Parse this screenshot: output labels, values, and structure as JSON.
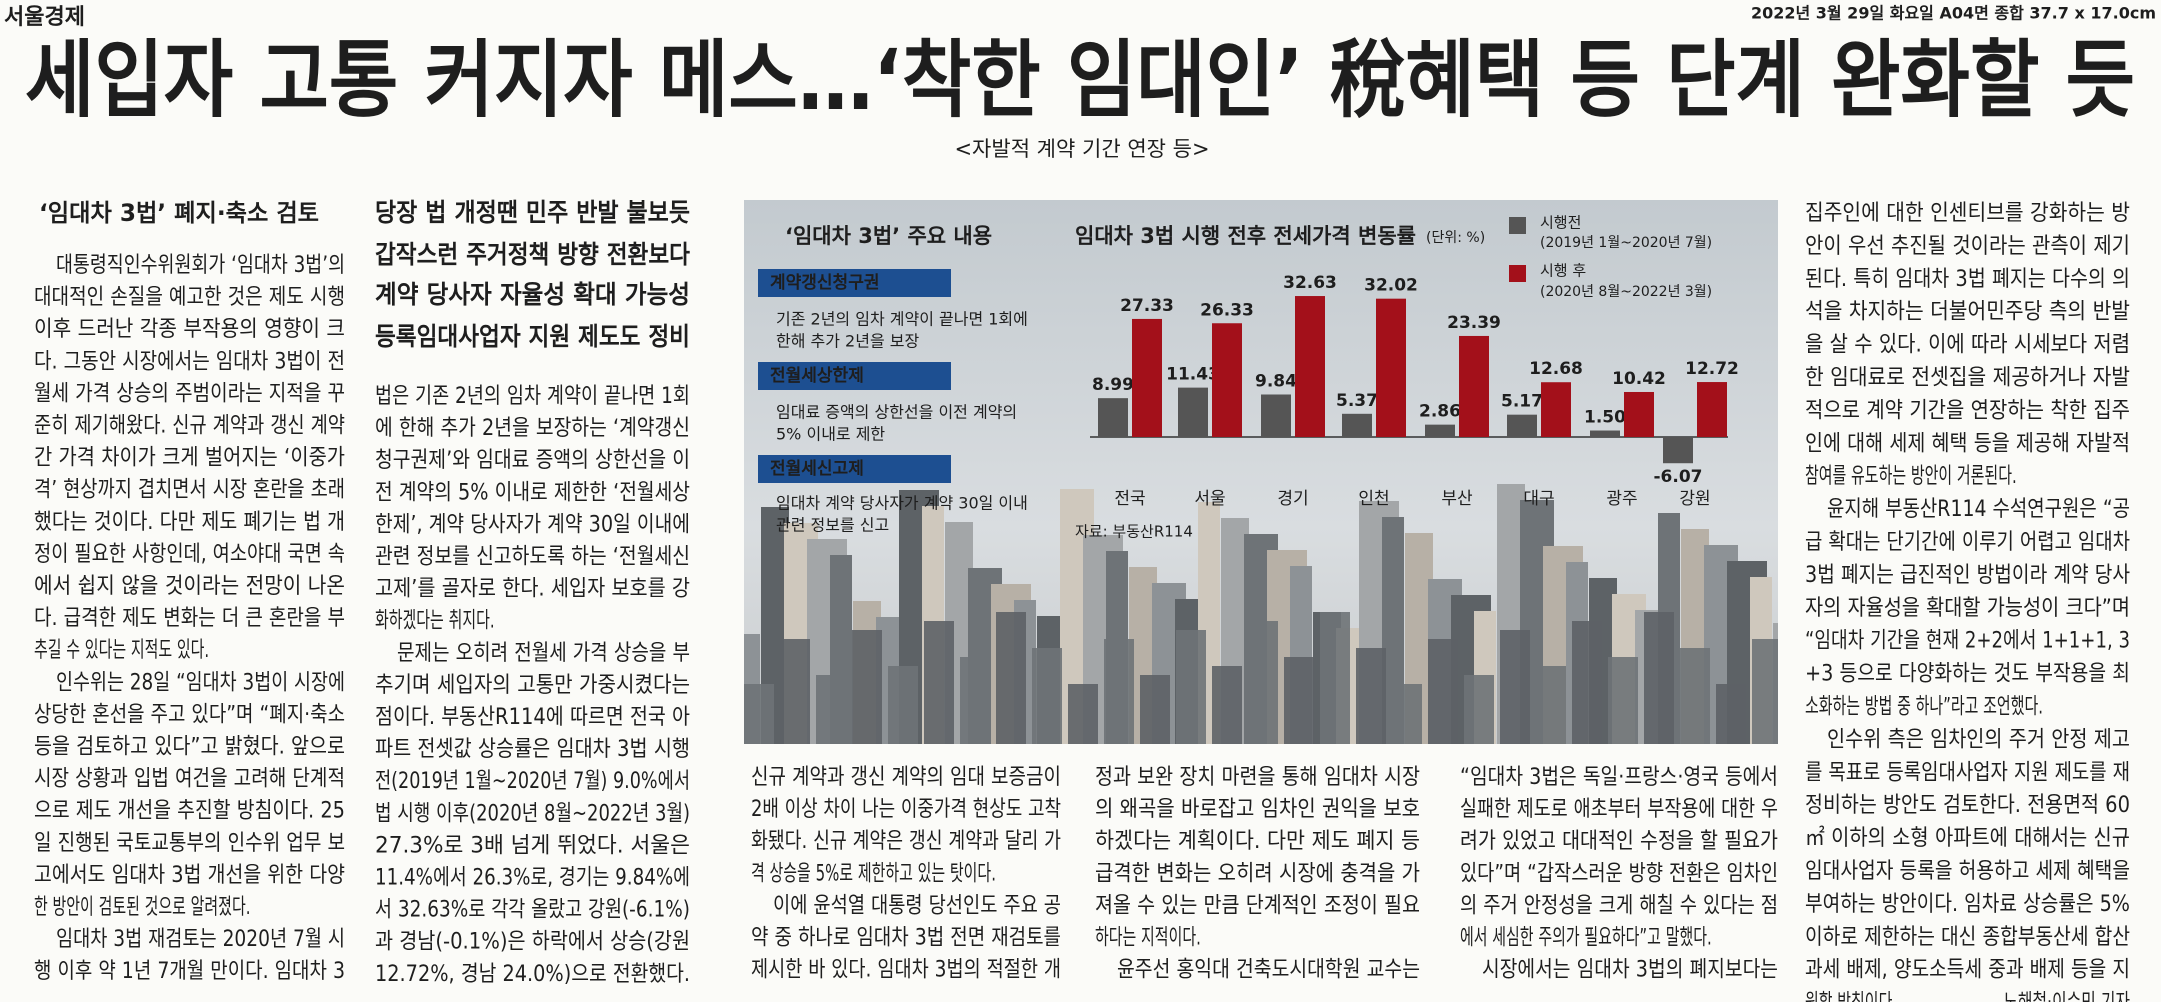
{
  "masthead": "서울경제",
  "dateline": "2022년 3월 29일 화요일 A04면 종합 37.7 x 17.0cm",
  "headline": "세입자 고통 커지자 메스…‘착한 임대인’ 稅혜택 등 단계 완화할 듯",
  "subheadline": "<자발적 계약 기간 연장 등>",
  "subhead": "‘임대차 3법’ 폐지·축소 검토",
  "deck": [
    "당장 법 개정땐 민주 반발 불보듯",
    "갑작스런 주거정책 방향 전환보다",
    "계약 당사자 자율성 확대 가능성",
    "등록임대사업자 지원 제도도 정비"
  ],
  "columns": [
    {
      "paragraphs": [
        {
          "lines": [
            "대통령직인수위원회가 ‘임대차 3법’의",
            "대대적인 손질을 예고한 것은 제도 시행",
            "이후 드러난 각종 부작용의 영향이 크",
            "다. 그동안 시장에서는 임대차 3법이 전",
            "월세 가격 상승의 주범이라는 지적을 꾸",
            "준히 제기해왔다. 신규 계약과 갱신 계약",
            "간 가격 차이가 크게 벌어지는 ‘이중가",
            "격’ 현상까지 겹치면서 시장 혼란을 초래",
            "했다는 것이다. 다만 제도 폐기는 법 개",
            "정이 필요한 사항인데, 여소야대 국면 속",
            "에서 쉽지 않을 것이라는 전망이 나온",
            "다. 급격한 제도 변화는 더 큰 혼란을 부",
            "추길 수 있다는 지적도 있다."
          ]
        },
        {
          "lines": [
            "인수위는 28일 “임대차 3법이 시장에",
            "상당한 혼선을 주고 있다”며 “폐지·축소",
            "등을 검토하고 있다”고 밝혔다. 앞으로",
            "시장 상황과 입법 여건을 고려해 단계적",
            "으로 제도 개선을 추진할 방침이다. 25",
            "일 진행된 국토교통부의 인수위 업무 보",
            "고에서도 임대차 3법 개선을 위한 다양",
            "한 방안이 검토된 것으로 알려졌다."
          ]
        },
        {
          "lines": [
            "임대차 3법 재검토는 2020년 7월 시",
            "행 이후 약 1년 7개월 만이다. 임대차 3"
          ]
        }
      ]
    },
    {
      "paragraphs": [
        {
          "lines": [
            "법은 기존 2년의 임차 계약이 끝나면 1회",
            "에 한해 추가 2년을 보장하는 ‘계약갱신",
            "청구권제’와 임대료 증액의 상한선을 이",
            "전 계약의 5% 이내로 제한한 ‘전월세상",
            "한제’, 계약 당사자가 계약 30일 이내에",
            "관련 정보를 신고하도록 하는 ‘전월세신",
            "고제’를 골자로 한다. 세입자 보호를 강",
            "화하겠다는 취지다."
          ]
        },
        {
          "lines": [
            "문제는 오히려 전월세 가격 상승을 부",
            "추기며 세입자의 고통만 가중시켰다는",
            "점이다. 부동산R114에 따르면 전국 아",
            "파트 전셋값 상승률은 임대차 3법 시행",
            "전(2019년 1월~2020년 7월) 9.0%에서",
            "법 시행 이후(2020년 8월~2022년 3월)",
            "27.3%로 3배 넘게 뛰었다. 서울은",
            "11.4%에서 26.3%로, 경기는 9.84%에",
            "서 32.63%로 각각 올랐고 강원(-6.1%)",
            "과 경남(-0.1%)은 하락에서 상승(강원",
            "12.72%, 경남 24.0%)으로 전환했다."
          ]
        }
      ]
    },
    {
      "paragraphs": [
        {
          "lines": [
            "신규 계약과 갱신 계약의 임대 보증금이",
            "2배 이상 차이 나는 이중가격 현상도 고착",
            "화됐다. 신규 계약은 갱신 계약과 달리 가",
            "격 상승을 5%로 제한하고 있는 탓이다."
          ]
        },
        {
          "lines": [
            "이에 윤석열 대통령 당선인도 주요 공",
            "약 중 하나로 임대차 3법 전면 재검토를",
            "제시한 바 있다. 임대차 3법의 적절한 개"
          ]
        }
      ]
    },
    {
      "paragraphs": [
        {
          "lines": [
            "정과 보완 장치 마련을 통해 임대차 시장",
            "의 왜곡을 바로잡고 임차인 권익을 보호",
            "하겠다는 계획이다. 다만 제도 폐지 등",
            "급격한 변화는 오히려 시장에 충격을 가",
            "져올 수 있는 만큼 단계적인 조정이 필요",
            "하다는 지적이다."
          ]
        },
        {
          "lines": [
            "윤주선 홍익대 건축도시대학원 교수는"
          ]
        }
      ]
    },
    {
      "paragraphs": [
        {
          "lines": [
            "“임대차 3법은 독일·프랑스·영국 등에서",
            "실패한 제도로 애초부터 부작용에 대한 우",
            "려가 있었고 대대적인 수정을 할 필요가",
            "있다”며 “갑작스러운 방향 전환은 임차인",
            "의 주거 안정성을 크게 해칠 수 있다는 점",
            "에서 세심한 주의가 필요하다”고 말했다."
          ]
        },
        {
          "lines": [
            "시장에서는 임대차 3법의 폐지보다는"
          ]
        }
      ]
    },
    {
      "paragraphs": [
        {
          "lines": [
            "집주인에 대한 인센티브를 강화하는 방",
            "안이 우선 추진될 것이라는 관측이 제기",
            "된다. 특히 임대차 3법 폐지는 다수의 의",
            "석을 차지하는 더불어민주당 측의 반발",
            "을 살 수 있다. 이에 따라 시세보다 저렴",
            "한 임대료로 전셋집을 제공하거나 자발",
            "적으로 계약 기간을 연장하는 착한 집주",
            "인에 대해 세제 혜택 등을 제공해 자발적",
            "참여를 유도하는 방안이 거론된다."
          ]
        },
        {
          "lines": [
            "윤지해 부동산R114 수석연구원은 “공",
            "급 확대는 단기간에 이루기 어렵고 임대차",
            "3법 폐지는 급진적인 방법이라 계약 당사",
            "자의 자율성을 확대할 가능성이 크다”며",
            "“임대차 기간을 현재 2+2에서 1+1+1, 3",
            "+3 등으로 다양화하는 것도 부작용을 최",
            "소화하는 방법 중 하나”라고 조언했다."
          ]
        },
        {
          "lines": [
            "인수위 측은 임차인의 주거 안정 제고",
            "를 목표로 등록임대사업자 지원 제도를 재",
            "정비하는 방안도 검토한다. 전용면적 60",
            "㎡ 이하의 소형 아파트에 대해서는 신규",
            "임대사업자 등록을 허용하고 세제 혜택을",
            "부여하는 방안이다. 임차료 상승률은 5%",
            "이하로 제한하는 대신 종합부동산세 합산",
            "과세 배제, 양도소득세 중과 배제 등을 지",
            "원할 방침이다."
          ]
        }
      ]
    }
  ],
  "byline": "노해철·이수민 기자",
  "infobox": {
    "title": "‘임대차 3법’ 주요 내용",
    "items": [
      {
        "label": "계약갱신청구권",
        "lines": [
          "기존 2년의 임차 계약이 끝나면 1회에",
          "한해 추가 2년을 보장"
        ]
      },
      {
        "label": "전월세상한제",
        "lines": [
          "임대료 증액의 상한선을 이전 계약의",
          "5% 이내로 제한"
        ]
      },
      {
        "label": "전월세신고제",
        "lines": [
          "임대차 계약 당사자가 계약 30일 이내",
          "관련 정보를 신고"
        ]
      }
    ]
  },
  "chart_data": {
    "type": "bar",
    "title": "임대차 3법 시행 전후 전세가격 변동률",
    "unit": "(단위: %)",
    "categories": [
      "전국",
      "서울",
      "경기",
      "인천",
      "부산",
      "대구",
      "광주",
      "강원"
    ],
    "series": [
      {
        "name": "시행전",
        "period": "(2019년 1월~2020년 7월)",
        "color": "#555555",
        "values": [
          8.99,
          11.43,
          9.84,
          5.37,
          2.86,
          5.17,
          1.5,
          -6.07
        ],
        "value_labels": [
          "8.99",
          "11.43",
          "9.84",
          "5.37",
          "2.86",
          "5.17",
          "1.50",
          "-6.07"
        ]
      },
      {
        "name": "시행 후",
        "period": "(2020년 8월~2022년 3월)",
        "color": "#a3101a",
        "values": [
          27.33,
          26.33,
          32.63,
          32.02,
          23.39,
          12.68,
          10.42,
          12.72
        ]
      }
    ],
    "source": "자료: 부동산R114"
  }
}
